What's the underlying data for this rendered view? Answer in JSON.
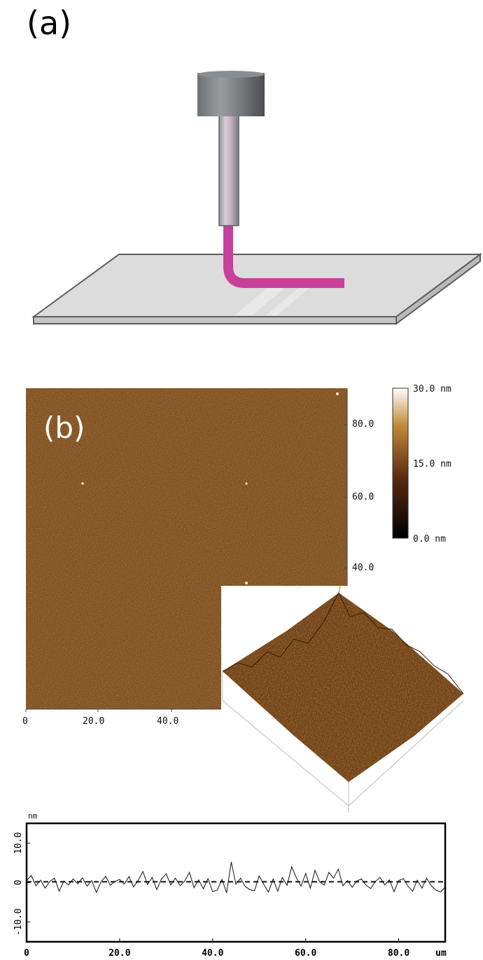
{
  "panel_a": {
    "label": "(a)"
  },
  "panel_b": {
    "label": "(b)",
    "afm_image": {
      "y_ticks": [
        "80.0",
        "60.0",
        "40.0"
      ],
      "x_ticks": [
        "0",
        "20.0",
        "40.0"
      ]
    },
    "colorbar": {
      "labels": [
        "30.0 nm",
        "15.0 nm",
        "0.0 nm"
      ],
      "colors": [
        "#ffffff",
        "#c08a36",
        "#5a2a10",
        "#000000"
      ]
    }
  },
  "chart_data": {
    "type": "line",
    "ylabel": "nm",
    "xlabel": "um",
    "ylim": [
      -15,
      15
    ],
    "xlim": [
      0,
      90
    ],
    "y_ticks": [
      "10.0",
      "0",
      "-10.0"
    ],
    "x_ticks": [
      "0",
      "20.0",
      "40.0",
      "60.0",
      "80.0",
      "um"
    ],
    "series": [
      {
        "style": "solid",
        "x": [
          0,
          1,
          2,
          3,
          4,
          5,
          6,
          7,
          8,
          9,
          10,
          11,
          12,
          13,
          14,
          15,
          16,
          17,
          18,
          19,
          20,
          21,
          22,
          23,
          24,
          25,
          26,
          27,
          28,
          29,
          30,
          31,
          32,
          33,
          34,
          35,
          36,
          37,
          38,
          39,
          40,
          41,
          42,
          43,
          44,
          45,
          46,
          47,
          48,
          49,
          50,
          51,
          52,
          53,
          54,
          55,
          56,
          57,
          58,
          59,
          60,
          61,
          62,
          63,
          64,
          65,
          66,
          67,
          68,
          69,
          70,
          71,
          72,
          73,
          74,
          75,
          76,
          77,
          78,
          79,
          80,
          81,
          82,
          83,
          84,
          85,
          86,
          87,
          88,
          89,
          90
        ],
        "values": [
          0.5,
          1.8,
          -0.8,
          0.6,
          -1.4,
          0.3,
          1.1,
          -2.2,
          0.4,
          -0.6,
          0.9,
          -0.3,
          1.2,
          -0.9,
          0.5,
          -2.5,
          0.2,
          1.6,
          -0.7,
          0.3,
          0.8,
          -0.4,
          1.5,
          -1.1,
          0.6,
          2.8,
          -0.5,
          1.3,
          -1.8,
          0.9,
          2.2,
          -0.6,
          1.1,
          -0.8,
          0.4,
          2.6,
          -1.3,
          0.7,
          -1.6,
          1.0,
          -2.3,
          -1.9,
          0.8,
          -2.6,
          5.2,
          -0.4,
          1.1,
          -1.0,
          -1.8,
          -2.1,
          1.7,
          -0.5,
          -2.4,
          0.9,
          -2.2,
          1.3,
          -0.7,
          4.0,
          1.2,
          -0.9,
          2.3,
          -1.4,
          3.1,
          0.2,
          -0.6,
          2.6,
          1.1,
          3.4,
          -0.8,
          0.5,
          -1.2,
          0.4,
          0.9,
          -0.7,
          -1.5,
          0.3,
          1.3,
          -0.6,
          0.7,
          -2.3,
          0.5,
          1.0,
          -0.9,
          -2.2,
          0.6,
          -1.4,
          1.1,
          -0.8,
          -1.9,
          -2.4,
          -1.1
        ]
      },
      {
        "style": "dashed",
        "x": [
          0,
          90
        ],
        "values": [
          0.2,
          0.2
        ]
      }
    ]
  }
}
